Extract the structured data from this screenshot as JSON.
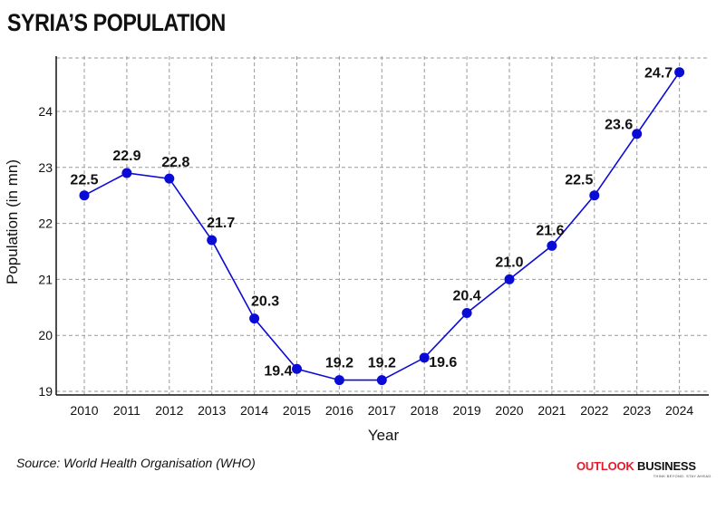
{
  "title": "SYRIA’S POPULATION",
  "source": "Source: World Health Organisation (WHO)",
  "brand": {
    "name_part1": "OUTLOOK",
    "name_part2": "BUSINESS",
    "tagline": "THINK BEYOND. STAY AHEAD.",
    "color_primary": "#e8192c"
  },
  "colors": {
    "line": "#0b0bd6",
    "marker": "#0b0bd6",
    "grid": "#9a9a9a"
  },
  "chart_data": {
    "type": "line",
    "xlabel": "Year",
    "ylabel": "Population (in mn)",
    "categories": [
      "2010",
      "2011",
      "2012",
      "2013",
      "2014",
      "2015",
      "2016",
      "2017",
      "2018",
      "2019",
      "2020",
      "2021",
      "2022",
      "2023",
      "2024"
    ],
    "series": [
      {
        "values": [
          22.5,
          22.9,
          22.8,
          21.7,
          20.3,
          19.4,
          19.2,
          19.2,
          19.6,
          20.4,
          21.0,
          21.6,
          22.5,
          23.6,
          24.7
        ],
        "labels": [
          "22.5",
          "22.9",
          "22.8",
          "21.7",
          "20.3",
          "19.4",
          "19.2",
          "19.2",
          "19.6",
          "20.4",
          "21.0",
          "21.6",
          "22.5",
          "23.6",
          "24.7"
        ]
      }
    ],
    "yticks": [
      19,
      20,
      21,
      22,
      23,
      24
    ],
    "ylim": [
      18.95,
      25.0
    ],
    "grid": true,
    "legend": false
  }
}
